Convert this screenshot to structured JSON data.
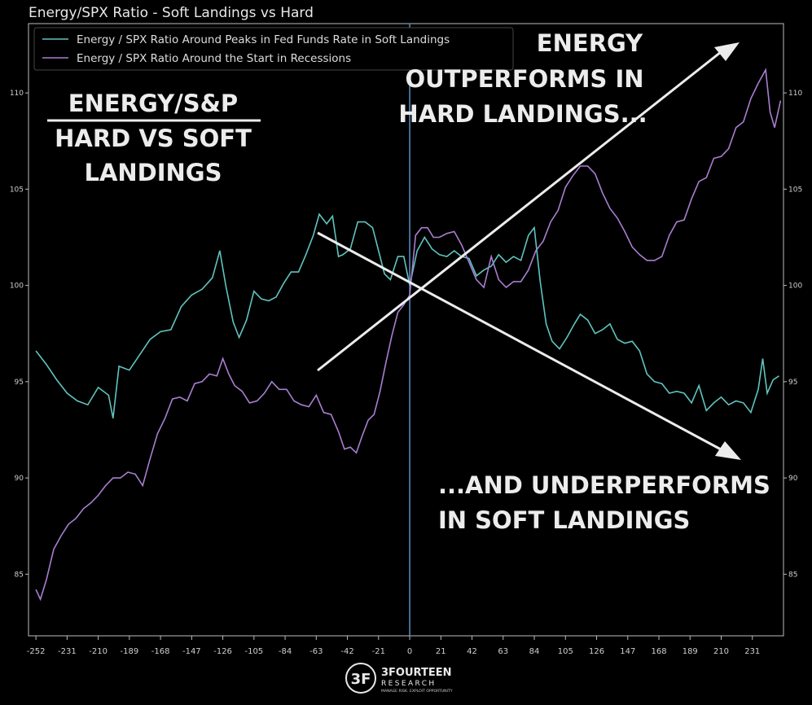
{
  "colors": {
    "background": "#000000",
    "soft_series": "#5fc4bf",
    "hard_series": "#a87fd0",
    "zero_line": "#5b8fc7",
    "axis": "#bbbbbb",
    "annotation": "#ececec"
  },
  "logo": {
    "name": "3FOURTEEN",
    "sub": "RESEARCH",
    "tagline": "MANAGE RISK. EXPLOIT OPPORTUNITY"
  },
  "chart_data": {
    "type": "line",
    "title": "Energy/SPX Ratio - Soft Landings vs Hard",
    "xlabel": "",
    "ylabel": "",
    "xlim": [
      -257,
      252
    ],
    "ylim": [
      81.8,
      113.6
    ],
    "xticks": [
      -252,
      -231,
      -210,
      -189,
      -168,
      -147,
      -126,
      -105,
      -84,
      -63,
      -42,
      -21,
      0,
      21,
      42,
      63,
      84,
      105,
      126,
      147,
      168,
      189,
      210,
      231
    ],
    "yticks": [
      85,
      90,
      95,
      100,
      105,
      110
    ],
    "y_axes": "left and right",
    "grid": false,
    "legend_position": "top-left",
    "vertical_line_x": 0,
    "series": [
      {
        "name": "Energy / SPX Ratio Around Peaks in Fed Funds Rate in Soft Landings",
        "color": "#5fc4bf",
        "points": [
          [
            -252,
            96.6
          ],
          [
            -245,
            95.9
          ],
          [
            -238,
            95.1
          ],
          [
            -231,
            94.4
          ],
          [
            -224,
            94.0
          ],
          [
            -217,
            93.8
          ],
          [
            -210,
            94.7
          ],
          [
            -203,
            94.3
          ],
          [
            -200,
            93.1
          ],
          [
            -196,
            95.8
          ],
          [
            -189,
            95.6
          ],
          [
            -182,
            96.4
          ],
          [
            -175,
            97.2
          ],
          [
            -168,
            97.6
          ],
          [
            -161,
            97.7
          ],
          [
            -154,
            98.9
          ],
          [
            -147,
            99.5
          ],
          [
            -140,
            99.8
          ],
          [
            -133,
            100.4
          ],
          [
            -128,
            101.8
          ],
          [
            -124,
            100.0
          ],
          [
            -119,
            98.1
          ],
          [
            -115,
            97.3
          ],
          [
            -110,
            98.2
          ],
          [
            -105,
            99.7
          ],
          [
            -100,
            99.3
          ],
          [
            -95,
            99.2
          ],
          [
            -90,
            99.4
          ],
          [
            -85,
            100.1
          ],
          [
            -80,
            100.7
          ],
          [
            -75,
            100.7
          ],
          [
            -70,
            101.6
          ],
          [
            -65,
            102.6
          ],
          [
            -61,
            103.7
          ],
          [
            -56,
            103.2
          ],
          [
            -52,
            103.6
          ],
          [
            -48,
            101.5
          ],
          [
            -45,
            101.6
          ],
          [
            -40,
            101.9
          ],
          [
            -35,
            103.3
          ],
          [
            -30,
            103.3
          ],
          [
            -25,
            103.0
          ],
          [
            -21,
            101.8
          ],
          [
            -17,
            100.6
          ],
          [
            -13,
            100.3
          ],
          [
            -8,
            101.5
          ],
          [
            -4,
            101.5
          ],
          [
            0,
            100.0
          ],
          [
            5,
            101.8
          ],
          [
            10,
            102.5
          ],
          [
            15,
            101.9
          ],
          [
            20,
            101.6
          ],
          [
            25,
            101.5
          ],
          [
            30,
            101.8
          ],
          [
            35,
            101.5
          ],
          [
            40,
            101.4
          ],
          [
            45,
            100.5
          ],
          [
            50,
            100.8
          ],
          [
            55,
            101.0
          ],
          [
            60,
            101.6
          ],
          [
            65,
            101.2
          ],
          [
            70,
            101.5
          ],
          [
            75,
            101.3
          ],
          [
            80,
            102.6
          ],
          [
            84,
            103.0
          ],
          [
            88,
            100.2
          ],
          [
            92,
            98.0
          ],
          [
            96,
            97.1
          ],
          [
            101,
            96.7
          ],
          [
            106,
            97.3
          ],
          [
            111,
            98.0
          ],
          [
            115,
            98.5
          ],
          [
            120,
            98.2
          ],
          [
            125,
            97.5
          ],
          [
            130,
            97.7
          ],
          [
            135,
            98.0
          ],
          [
            140,
            97.2
          ],
          [
            145,
            97.0
          ],
          [
            150,
            97.1
          ],
          [
            155,
            96.6
          ],
          [
            160,
            95.4
          ],
          [
            165,
            95.0
          ],
          [
            170,
            94.9
          ],
          [
            175,
            94.4
          ],
          [
            180,
            94.5
          ],
          [
            185,
            94.4
          ],
          [
            190,
            93.9
          ],
          [
            195,
            94.8
          ],
          [
            200,
            93.5
          ],
          [
            205,
            93.9
          ],
          [
            210,
            94.2
          ],
          [
            215,
            93.8
          ],
          [
            220,
            94.0
          ],
          [
            225,
            93.9
          ],
          [
            230,
            93.4
          ],
          [
            235,
            94.6
          ],
          [
            238,
            96.2
          ],
          [
            241,
            94.4
          ],
          [
            245,
            95.1
          ],
          [
            249,
            95.3
          ]
        ]
      },
      {
        "name": "Energy / SPX Ratio Around the Start in Recessions",
        "color": "#a87fd0",
        "points": [
          [
            -252,
            84.2
          ],
          [
            -249,
            83.7
          ],
          [
            -245,
            84.7
          ],
          [
            -240,
            86.3
          ],
          [
            -235,
            87.0
          ],
          [
            -230,
            87.6
          ],
          [
            -225,
            87.9
          ],
          [
            -220,
            88.4
          ],
          [
            -215,
            88.7
          ],
          [
            -210,
            89.1
          ],
          [
            -205,
            89.6
          ],
          [
            -200,
            90.0
          ],
          [
            -195,
            90.0
          ],
          [
            -190,
            90.3
          ],
          [
            -185,
            90.2
          ],
          [
            -180,
            89.6
          ],
          [
            -175,
            91.0
          ],
          [
            -170,
            92.3
          ],
          [
            -165,
            93.1
          ],
          [
            -160,
            94.1
          ],
          [
            -155,
            94.2
          ],
          [
            -150,
            94.0
          ],
          [
            -145,
            94.9
          ],
          [
            -140,
            95.0
          ],
          [
            -135,
            95.4
          ],
          [
            -130,
            95.3
          ],
          [
            -126,
            96.2
          ],
          [
            -122,
            95.4
          ],
          [
            -118,
            94.8
          ],
          [
            -113,
            94.5
          ],
          [
            -108,
            93.9
          ],
          [
            -103,
            94.0
          ],
          [
            -98,
            94.4
          ],
          [
            -93,
            95.0
          ],
          [
            -88,
            94.6
          ],
          [
            -83,
            94.6
          ],
          [
            -78,
            94.0
          ],
          [
            -73,
            93.8
          ],
          [
            -68,
            93.7
          ],
          [
            -63,
            94.3
          ],
          [
            -58,
            93.4
          ],
          [
            -53,
            93.3
          ],
          [
            -48,
            92.4
          ],
          [
            -44,
            91.5
          ],
          [
            -40,
            91.6
          ],
          [
            -36,
            91.3
          ],
          [
            -32,
            92.2
          ],
          [
            -28,
            93.0
          ],
          [
            -24,
            93.3
          ],
          [
            -20,
            94.5
          ],
          [
            -16,
            96.0
          ],
          [
            -12,
            97.4
          ],
          [
            -8,
            98.6
          ],
          [
            -4,
            99.0
          ],
          [
            0,
            99.5
          ],
          [
            4,
            102.6
          ],
          [
            8,
            103.0
          ],
          [
            12,
            103.0
          ],
          [
            16,
            102.5
          ],
          [
            20,
            102.5
          ],
          [
            25,
            102.7
          ],
          [
            30,
            102.8
          ],
          [
            35,
            102.1
          ],
          [
            40,
            101.2
          ],
          [
            45,
            100.3
          ],
          [
            50,
            99.9
          ],
          [
            55,
            101.5
          ],
          [
            60,
            100.3
          ],
          [
            65,
            99.9
          ],
          [
            70,
            100.2
          ],
          [
            75,
            100.2
          ],
          [
            80,
            100.8
          ],
          [
            85,
            101.8
          ],
          [
            90,
            102.3
          ],
          [
            95,
            103.3
          ],
          [
            100,
            103.9
          ],
          [
            105,
            105.1
          ],
          [
            110,
            105.7
          ],
          [
            115,
            106.2
          ],
          [
            120,
            106.2
          ],
          [
            125,
            105.8
          ],
          [
            130,
            104.8
          ],
          [
            135,
            104.0
          ],
          [
            140,
            103.5
          ],
          [
            145,
            102.8
          ],
          [
            150,
            102.0
          ],
          [
            155,
            101.6
          ],
          [
            160,
            101.3
          ],
          [
            165,
            101.3
          ],
          [
            170,
            101.5
          ],
          [
            175,
            102.6
          ],
          [
            180,
            103.3
          ],
          [
            185,
            103.4
          ],
          [
            190,
            104.5
          ],
          [
            195,
            105.4
          ],
          [
            200,
            105.6
          ],
          [
            205,
            106.6
          ],
          [
            210,
            106.7
          ],
          [
            215,
            107.1
          ],
          [
            220,
            108.2
          ],
          [
            225,
            108.5
          ],
          [
            230,
            109.7
          ],
          [
            235,
            110.5
          ],
          [
            240,
            111.2
          ],
          [
            243,
            109.0
          ],
          [
            246,
            108.2
          ],
          [
            250,
            109.6
          ]
        ]
      }
    ],
    "annotations": [
      {
        "id": "left-title",
        "lines": [
          "ENERGY/S&P"
        ],
        "lines_below": [
          "HARD VS SOFT",
          "LANDINGS"
        ]
      },
      {
        "id": "hard-note",
        "lines": [
          "ENERGY",
          "OUTPERFORMS IN",
          "HARD LANDINGS..."
        ]
      },
      {
        "id": "soft-note",
        "lines": [
          "...AND UNDERPERFORMS",
          "IN SOFT LANDINGS"
        ]
      }
    ]
  }
}
